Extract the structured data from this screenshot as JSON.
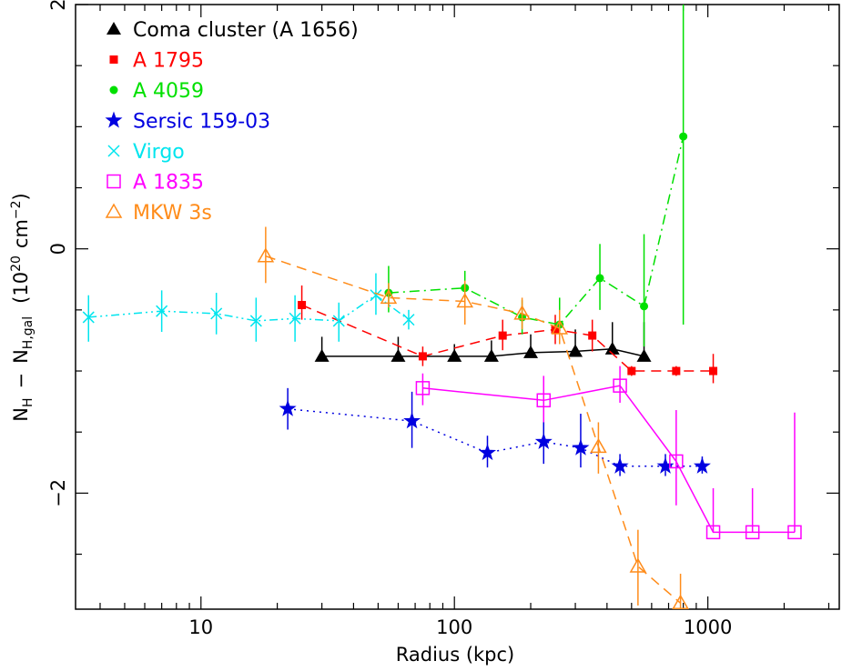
{
  "chart_data": {
    "type": "scatter",
    "title": "",
    "xlabel": "Radius (kpc)",
    "ylabel_parts": {
      "n1": "N",
      "n1_sub": "H",
      "minus": "−",
      "n2": "N",
      "n2_sub": "H,gal",
      "open": "(10",
      "exp1": "20",
      "unit": "cm",
      "exp2": "−2",
      "close": ")"
    },
    "xscale": "log",
    "xlim": [
      3.2,
      3300
    ],
    "ylim": [
      -2.95,
      2.0
    ],
    "legend_placement": "top-left",
    "x_ticks_major": [
      {
        "value": 10,
        "label": "10"
      },
      {
        "value": 100,
        "label": "100"
      },
      {
        "value": 1000,
        "label": "1000"
      }
    ],
    "y_ticks_major": [
      {
        "value": -2,
        "label": "−2"
      },
      {
        "value": 0,
        "label": "0"
      },
      {
        "value": 2,
        "label": "2"
      }
    ],
    "series": [
      {
        "name": "Coma cluster (A 1656)",
        "color": "#000000",
        "marker": "filled-triangle",
        "line": "solid",
        "points": [
          {
            "x": 30,
            "y": -0.88,
            "lo": -0.88,
            "hi": -0.72
          },
          {
            "x": 60,
            "y": -0.88,
            "lo": -0.88,
            "hi": -0.72
          },
          {
            "x": 100,
            "y": -0.88,
            "lo": -0.88,
            "hi": -0.78
          },
          {
            "x": 140,
            "y": -0.88,
            "lo": -0.88,
            "hi": -0.75
          },
          {
            "x": 200,
            "y": -0.85,
            "lo": -0.85,
            "hi": -0.7
          },
          {
            "x": 300,
            "y": -0.84,
            "lo": -0.84,
            "hi": -0.66
          },
          {
            "x": 420,
            "y": -0.82,
            "lo": -0.82,
            "hi": -0.6
          },
          {
            "x": 560,
            "y": -0.88,
            "lo": -0.88,
            "hi": -0.6
          }
        ]
      },
      {
        "name": "A 1795",
        "color": "#ff0000",
        "marker": "filled-square",
        "line": "dashed",
        "points": [
          {
            "x": 25,
            "y": -0.46,
            "lo": -0.58,
            "hi": -0.3
          },
          {
            "x": 75,
            "y": -0.88,
            "lo": -0.96,
            "hi": -0.8
          },
          {
            "x": 155,
            "y": -0.71,
            "lo": -0.83,
            "hi": -0.58
          },
          {
            "x": 250,
            "y": -0.66,
            "lo": -0.78,
            "hi": -0.54
          },
          {
            "x": 350,
            "y": -0.71,
            "lo": -0.84,
            "hi": -0.58
          },
          {
            "x": 500,
            "y": -1.0,
            "lo": -1.04,
            "hi": -0.96
          },
          {
            "x": 750,
            "y": -1.0,
            "lo": -1.04,
            "hi": -0.96
          },
          {
            "x": 1050,
            "y": -1.0,
            "lo": -1.1,
            "hi": -0.86
          }
        ]
      },
      {
        "name": "A 4059",
        "color": "#00e000",
        "marker": "filled-circle",
        "line": "dash-dot",
        "points": [
          {
            "x": 55,
            "y": -0.36,
            "lo": -0.52,
            "hi": -0.14
          },
          {
            "x": 110,
            "y": -0.32,
            "lo": -0.44,
            "hi": -0.18
          },
          {
            "x": 185,
            "y": -0.56,
            "lo": -0.7,
            "hi": -0.42
          },
          {
            "x": 260,
            "y": -0.62,
            "lo": -0.76,
            "hi": -0.4
          },
          {
            "x": 375,
            "y": -0.24,
            "lo": -0.5,
            "hi": 0.04
          },
          {
            "x": 560,
            "y": -0.47,
            "lo": -0.8,
            "hi": 0.12
          },
          {
            "x": 800,
            "y": 0.92,
            "lo": -0.62,
            "hi": 2.0
          }
        ]
      },
      {
        "name": "Sersic 159-03",
        "color": "#0000e0",
        "marker": "filled-star",
        "line": "dotted",
        "points": [
          {
            "x": 22,
            "y": -1.31,
            "lo": -1.48,
            "hi": -1.14
          },
          {
            "x": 68,
            "y": -1.41,
            "lo": -1.63,
            "hi": -1.17
          },
          {
            "x": 135,
            "y": -1.67,
            "lo": -1.79,
            "hi": -1.53
          },
          {
            "x": 225,
            "y": -1.58,
            "lo": -1.76,
            "hi": -1.4
          },
          {
            "x": 315,
            "y": -1.63,
            "lo": -1.79,
            "hi": -1.35
          },
          {
            "x": 450,
            "y": -1.78,
            "lo": -1.86,
            "hi": -1.68
          },
          {
            "x": 680,
            "y": -1.78,
            "lo": -1.86,
            "hi": -1.68
          },
          {
            "x": 950,
            "y": -1.78,
            "lo": -1.84,
            "hi": -1.7
          }
        ]
      },
      {
        "name": "Virgo",
        "color": "#00e5ee",
        "marker": "cross",
        "line": "dash-dot-dot",
        "points": [
          {
            "x": 3.6,
            "y": -0.56,
            "lo": -0.76,
            "hi": -0.38
          },
          {
            "x": 7,
            "y": -0.51,
            "lo": -0.68,
            "hi": -0.34
          },
          {
            "x": 11.5,
            "y": -0.53,
            "lo": -0.7,
            "hi": -0.36
          },
          {
            "x": 16.5,
            "y": -0.59,
            "lo": -0.76,
            "hi": -0.4
          },
          {
            "x": 23.5,
            "y": -0.57,
            "lo": -0.76,
            "hi": -0.38
          },
          {
            "x": 35,
            "y": -0.59,
            "lo": -0.76,
            "hi": -0.44
          },
          {
            "x": 49,
            "y": -0.38,
            "lo": -0.54,
            "hi": -0.2
          },
          {
            "x": 66,
            "y": -0.58,
            "lo": -0.66,
            "hi": -0.5
          }
        ]
      },
      {
        "name": "A 1835",
        "color": "#ff00ff",
        "marker": "open-square",
        "line": "solid",
        "points": [
          {
            "x": 75,
            "y": -1.14,
            "lo": -1.28,
            "hi": -1.02
          },
          {
            "x": 225,
            "y": -1.24,
            "lo": -1.42,
            "hi": -1.04
          },
          {
            "x": 450,
            "y": -1.12,
            "lo": -1.26,
            "hi": -0.96
          },
          {
            "x": 750,
            "y": -1.74,
            "lo": -2.1,
            "hi": -1.32
          },
          {
            "x": 1050,
            "y": -2.32,
            "lo": -2.32,
            "hi": -1.96
          },
          {
            "x": 1500,
            "y": -2.32,
            "lo": -2.32,
            "hi": -1.96
          },
          {
            "x": 2200,
            "y": -2.32,
            "lo": -2.32,
            "hi": -1.34
          }
        ]
      },
      {
        "name": "MKW 3s",
        "color": "#ff8c1a",
        "marker": "open-triangle",
        "line": "dashed",
        "points": [
          {
            "x": 18,
            "y": -0.06,
            "lo": -0.28,
            "hi": 0.18
          },
          {
            "x": 55,
            "y": -0.4,
            "lo": -0.48,
            "hi": -0.28
          },
          {
            "x": 110,
            "y": -0.43,
            "lo": -0.62,
            "hi": -0.26
          },
          {
            "x": 185,
            "y": -0.53,
            "lo": -0.66,
            "hi": -0.4
          },
          {
            "x": 260,
            "y": -0.65,
            "lo": -0.78,
            "hi": -0.5
          },
          {
            "x": 370,
            "y": -1.62,
            "lo": -1.84,
            "hi": -1.42
          },
          {
            "x": 530,
            "y": -2.6,
            "lo": -2.92,
            "hi": -2.3
          },
          {
            "x": 780,
            "y": -2.9,
            "lo": -2.95,
            "hi": -2.66
          }
        ]
      }
    ]
  }
}
